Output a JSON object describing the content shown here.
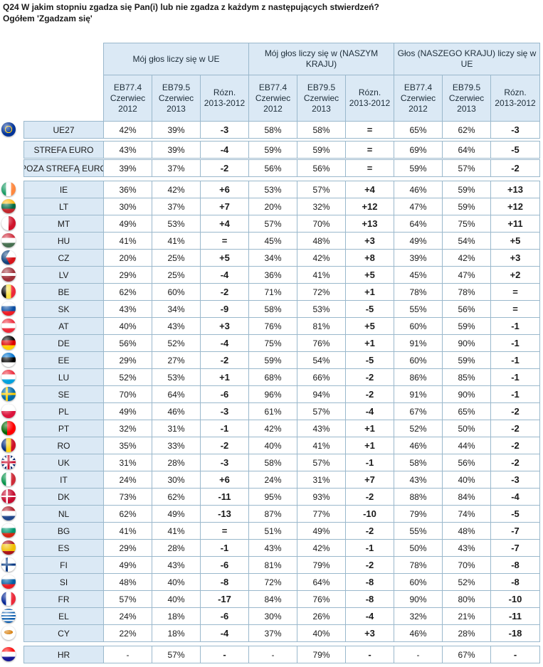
{
  "title": {
    "line1": "Q24 W jakim stopniu zgadza się Pan(i) lub nie zgadza z każdym z następujących stwierdzeń?",
    "line2": "Ogółem 'Zgadzam się'"
  },
  "groups": [
    "Mój głos liczy się w UE",
    "Mój głos liczy się w (NASZYM KRAJU)",
    "Głos (NASZEGO KRAJU) liczy się w UE"
  ],
  "subheaders": [
    "EB77.4 Czerwiec 2012",
    "EB79.5 Czerwiec 2013",
    "Rózn. 2013-2012"
  ],
  "flag_colors": {
    "eu": [
      "#003399",
      "#ffcc00"
    ],
    "IE": [
      "#169b62",
      "#ffffff",
      "#ff883e"
    ],
    "LT": [
      "#fdb913",
      "#006a44",
      "#c1272d"
    ],
    "MT": [
      "#ffffff",
      "#cf142b"
    ],
    "HU": [
      "#ce2939",
      "#ffffff",
      "#477050"
    ],
    "CZ": [
      "#ffffff",
      "#d7141a",
      "#11457e"
    ],
    "LV": [
      "#9e3039",
      "#ffffff"
    ],
    "BE": [
      "#000000",
      "#fae042",
      "#ed2939"
    ],
    "SK": [
      "#ffffff",
      "#0b4ea2",
      "#ee1c25"
    ],
    "AT": [
      "#ed2939",
      "#ffffff"
    ],
    "DE": [
      "#000000",
      "#dd0000",
      "#ffce00"
    ],
    "EE": [
      "#0072ce",
      "#000000",
      "#ffffff"
    ],
    "LU": [
      "#ed2939",
      "#ffffff",
      "#00a1de"
    ],
    "SE": [
      "#006aa7",
      "#fecc00"
    ],
    "PL": [
      "#ffffff",
      "#dc143c"
    ],
    "PT": [
      "#006600",
      "#ff0000"
    ],
    "RO": [
      "#002b7f",
      "#fcd116",
      "#ce1126"
    ],
    "UK": [
      "#012169",
      "#ffffff",
      "#c8102e"
    ],
    "IT": [
      "#009246",
      "#ffffff",
      "#ce2b37"
    ],
    "DK": [
      "#c60c30",
      "#ffffff"
    ],
    "NL": [
      "#ae1c28",
      "#ffffff",
      "#21468b"
    ],
    "BG": [
      "#ffffff",
      "#00966e",
      "#d62612"
    ],
    "ES": [
      "#aa151b",
      "#f1bf00"
    ],
    "FI": [
      "#ffffff",
      "#003580"
    ],
    "SI": [
      "#ffffff",
      "#005da4",
      "#ed1c24"
    ],
    "FR": [
      "#002395",
      "#ffffff",
      "#ed2939"
    ],
    "EL": [
      "#0d5eaf",
      "#ffffff"
    ],
    "CY": [
      "#ffffff",
      "#d57800",
      "#4e5b31"
    ],
    "HR": [
      "#ff0000",
      "#ffffff",
      "#171796"
    ]
  },
  "rows": [
    {
      "label": "UE27",
      "flag": "eu",
      "values": [
        "42%",
        "39%",
        "-3",
        "58%",
        "58%",
        "=",
        "65%",
        "62%",
        "-3"
      ]
    },
    {
      "label": "STREFA EURO",
      "flag": "",
      "values": [
        "43%",
        "39%",
        "-4",
        "59%",
        "59%",
        "=",
        "69%",
        "64%",
        "-5"
      ]
    },
    {
      "label": "POZA STREFĄ EURO",
      "flag": "",
      "values": [
        "39%",
        "37%",
        "-2",
        "56%",
        "56%",
        "=",
        "59%",
        "57%",
        "-2"
      ]
    },
    {
      "label": "IE",
      "flag": "IE",
      "values": [
        "36%",
        "42%",
        "+6",
        "53%",
        "57%",
        "+4",
        "46%",
        "59%",
        "+13"
      ]
    },
    {
      "label": "LT",
      "flag": "LT",
      "values": [
        "30%",
        "37%",
        "+7",
        "20%",
        "32%",
        "+12",
        "47%",
        "59%",
        "+12"
      ]
    },
    {
      "label": "MT",
      "flag": "MT",
      "values": [
        "49%",
        "53%",
        "+4",
        "57%",
        "70%",
        "+13",
        "64%",
        "75%",
        "+11"
      ]
    },
    {
      "label": "HU",
      "flag": "HU",
      "values": [
        "41%",
        "41%",
        "=",
        "45%",
        "48%",
        "+3",
        "49%",
        "54%",
        "+5"
      ]
    },
    {
      "label": "CZ",
      "flag": "CZ",
      "values": [
        "20%",
        "25%",
        "+5",
        "34%",
        "42%",
        "+8",
        "39%",
        "42%",
        "+3"
      ]
    },
    {
      "label": "LV",
      "flag": "LV",
      "values": [
        "29%",
        "25%",
        "-4",
        "36%",
        "41%",
        "+5",
        "45%",
        "47%",
        "+2"
      ]
    },
    {
      "label": "BE",
      "flag": "BE",
      "values": [
        "62%",
        "60%",
        "-2",
        "71%",
        "72%",
        "+1",
        "78%",
        "78%",
        "="
      ]
    },
    {
      "label": "SK",
      "flag": "SK",
      "values": [
        "43%",
        "34%",
        "-9",
        "58%",
        "53%",
        "-5",
        "55%",
        "56%",
        "="
      ]
    },
    {
      "label": "AT",
      "flag": "AT",
      "values": [
        "40%",
        "43%",
        "+3",
        "76%",
        "81%",
        "+5",
        "60%",
        "59%",
        "-1"
      ]
    },
    {
      "label": "DE",
      "flag": "DE",
      "values": [
        "56%",
        "52%",
        "-4",
        "75%",
        "76%",
        "+1",
        "91%",
        "90%",
        "-1"
      ]
    },
    {
      "label": "EE",
      "flag": "EE",
      "values": [
        "29%",
        "27%",
        "-2",
        "59%",
        "54%",
        "-5",
        "60%",
        "59%",
        "-1"
      ]
    },
    {
      "label": "LU",
      "flag": "LU",
      "values": [
        "52%",
        "53%",
        "+1",
        "68%",
        "66%",
        "-2",
        "86%",
        "85%",
        "-1"
      ]
    },
    {
      "label": "SE",
      "flag": "SE",
      "values": [
        "70%",
        "64%",
        "-6",
        "96%",
        "94%",
        "-2",
        "91%",
        "90%",
        "-1"
      ]
    },
    {
      "label": "PL",
      "flag": "PL",
      "values": [
        "49%",
        "46%",
        "-3",
        "61%",
        "57%",
        "-4",
        "67%",
        "65%",
        "-2"
      ]
    },
    {
      "label": "PT",
      "flag": "PT",
      "values": [
        "32%",
        "31%",
        "-1",
        "42%",
        "43%",
        "+1",
        "52%",
        "50%",
        "-2"
      ]
    },
    {
      "label": "RO",
      "flag": "RO",
      "values": [
        "35%",
        "33%",
        "-2",
        "40%",
        "41%",
        "+1",
        "46%",
        "44%",
        "-2"
      ]
    },
    {
      "label": "UK",
      "flag": "UK",
      "values": [
        "31%",
        "28%",
        "-3",
        "58%",
        "57%",
        "-1",
        "58%",
        "56%",
        "-2"
      ]
    },
    {
      "label": "IT",
      "flag": "IT",
      "values": [
        "24%",
        "30%",
        "+6",
        "24%",
        "31%",
        "+7",
        "43%",
        "40%",
        "-3"
      ]
    },
    {
      "label": "DK",
      "flag": "DK",
      "values": [
        "73%",
        "62%",
        "-11",
        "95%",
        "93%",
        "-2",
        "88%",
        "84%",
        "-4"
      ]
    },
    {
      "label": "NL",
      "flag": "NL",
      "values": [
        "62%",
        "49%",
        "-13",
        "87%",
        "77%",
        "-10",
        "79%",
        "74%",
        "-5"
      ]
    },
    {
      "label": "BG",
      "flag": "BG",
      "values": [
        "41%",
        "41%",
        "=",
        "51%",
        "49%",
        "-2",
        "55%",
        "48%",
        "-7"
      ]
    },
    {
      "label": "ES",
      "flag": "ES",
      "values": [
        "29%",
        "28%",
        "-1",
        "43%",
        "42%",
        "-1",
        "50%",
        "43%",
        "-7"
      ]
    },
    {
      "label": "FI",
      "flag": "FI",
      "values": [
        "49%",
        "43%",
        "-6",
        "81%",
        "79%",
        "-2",
        "78%",
        "70%",
        "-8"
      ]
    },
    {
      "label": "SI",
      "flag": "SI",
      "values": [
        "48%",
        "40%",
        "-8",
        "72%",
        "64%",
        "-8",
        "60%",
        "52%",
        "-8"
      ]
    },
    {
      "label": "FR",
      "flag": "FR",
      "values": [
        "57%",
        "40%",
        "-17",
        "84%",
        "76%",
        "-8",
        "90%",
        "80%",
        "-10"
      ]
    },
    {
      "label": "EL",
      "flag": "EL",
      "values": [
        "24%",
        "18%",
        "-6",
        "30%",
        "26%",
        "-4",
        "32%",
        "21%",
        "-11"
      ]
    },
    {
      "label": "CY",
      "flag": "CY",
      "values": [
        "22%",
        "18%",
        "-4",
        "37%",
        "40%",
        "+3",
        "46%",
        "28%",
        "-18"
      ]
    },
    {
      "label": "HR",
      "flag": "HR",
      "values": [
        "-",
        "57%",
        "-",
        "-",
        "79%",
        "-",
        "-",
        "67%",
        "-"
      ]
    }
  ]
}
